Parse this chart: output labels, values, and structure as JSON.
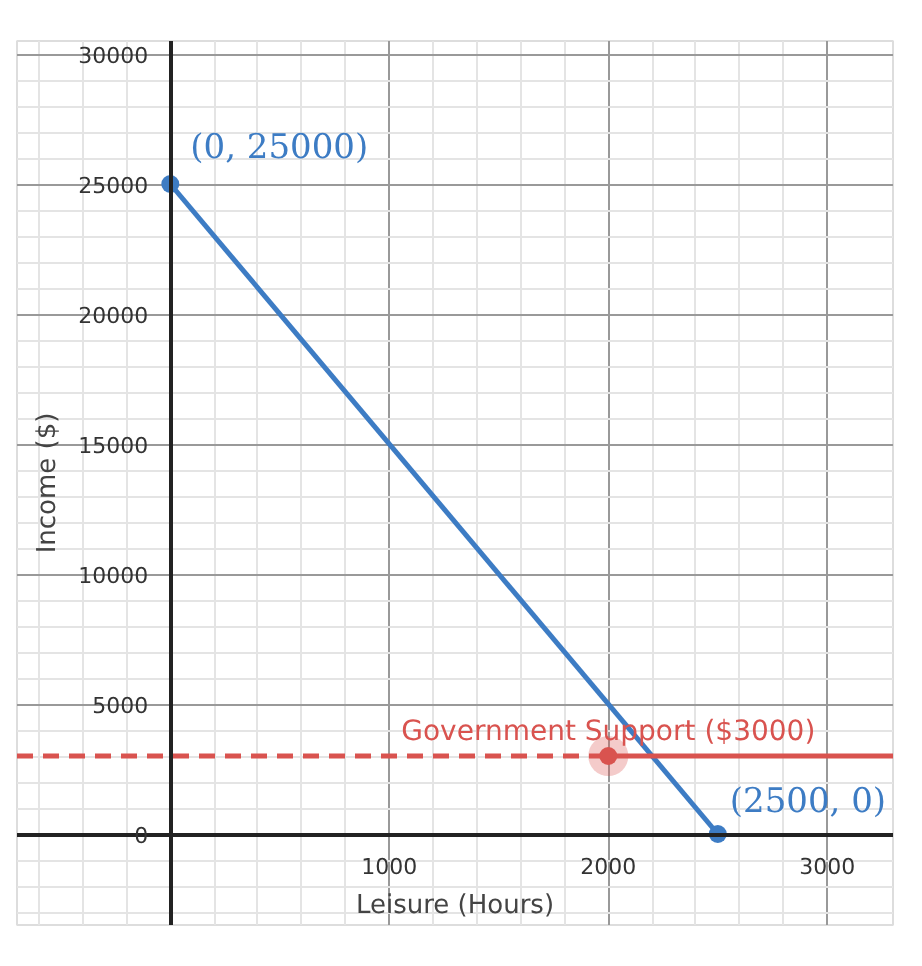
{
  "chart_data": {
    "type": "line",
    "xlabel": "Leisure (Hours)",
    "ylabel": "Income ($)",
    "xlim": [
      -700,
      3300
    ],
    "ylim": [
      -3500,
      30500
    ],
    "xticks": [
      1000,
      2000,
      3000
    ],
    "yticks": [
      0,
      5000,
      10000,
      15000,
      20000,
      25000,
      30000
    ],
    "grid": true,
    "series": [
      {
        "color": "#3d7cc4",
        "x": [
          0,
          2500
        ],
        "values": [
          25000,
          0
        ],
        "marker": "circle",
        "line_style": "solid"
      },
      {
        "color": "#d9534f",
        "x": [
          -700,
          2000
        ],
        "values": [
          3000,
          3000
        ],
        "line_style": "dashed"
      },
      {
        "color": "#d9534f",
        "x": [
          2000,
          3300
        ],
        "values": [
          3000,
          3000
        ],
        "line_style": "solid"
      },
      {
        "type": "scatter",
        "color": "#d9534f",
        "x": [
          2000
        ],
        "values": [
          3000
        ],
        "marker": "circle"
      }
    ],
    "annotations": [
      {
        "text": "(0, 25000)",
        "x": 0,
        "y": 25000
      },
      {
        "text": "(2500, 0)",
        "x": 2500,
        "y": 0
      },
      {
        "text": "Government Support ($3000)",
        "x": 2000,
        "y": 3000
      }
    ]
  }
}
